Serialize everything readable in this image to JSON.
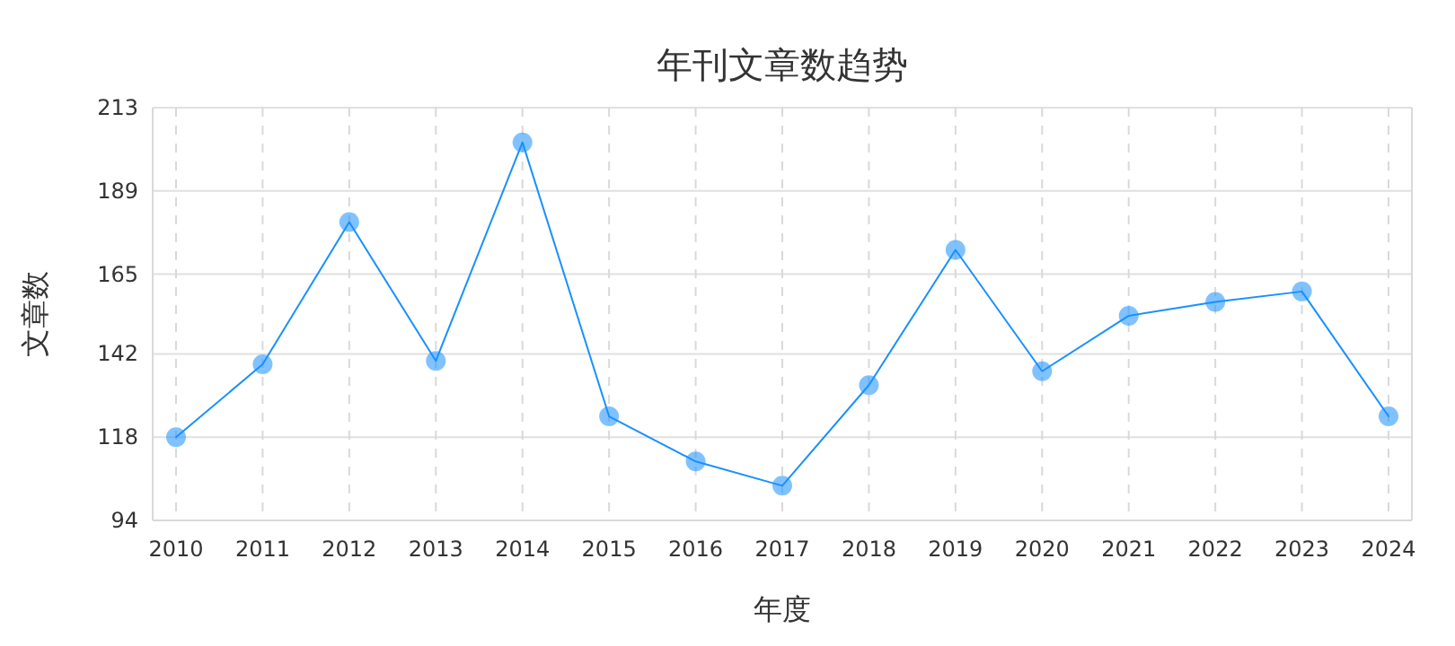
{
  "chart_data": {
    "type": "line",
    "title": "年刊文章数趋势",
    "xlabel": "年度",
    "ylabel": "文章数",
    "categories": [
      "2010",
      "2011",
      "2012",
      "2013",
      "2014",
      "2015",
      "2016",
      "2017",
      "2018",
      "2019",
      "2020",
      "2021",
      "2022",
      "2023",
      "2024"
    ],
    "series": [
      {
        "color": "#1890ff",
        "values": [
          118,
          139,
          180,
          140,
          203,
          124,
          111,
          104,
          133,
          172,
          137,
          153,
          157,
          160,
          124
        ]
      }
    ],
    "ylim": [
      94,
      213
    ],
    "yticks": [
      94,
      118,
      142,
      165,
      189,
      213
    ],
    "grid": true,
    "marker": "circle",
    "line_style": "solid"
  }
}
